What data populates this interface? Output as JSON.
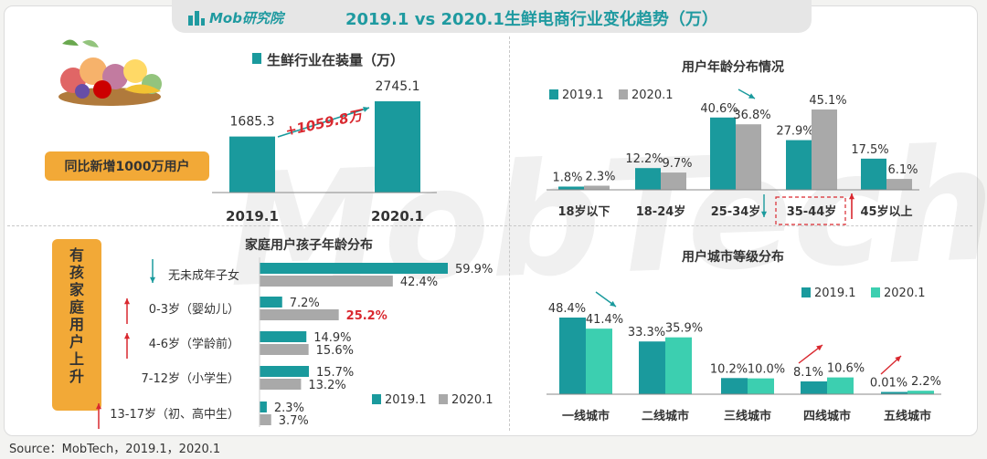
{
  "header": {
    "logo_text": "Mob研究院",
    "title": "2019.1 vs 2020.1生鲜电商行业变化趋势（万）"
  },
  "watermark": "MobTech",
  "source": "Source：MobTech，2019.1，2020.1",
  "colors": {
    "teal": "#1a9a9d",
    "gray": "#a9a9a9",
    "mint": "#3ccfb0",
    "red": "#d9282f",
    "orange": "#f2a937"
  },
  "badges": {
    "users_added": "同比新增1000万用户",
    "family_rising": "有孩家庭用户上升"
  },
  "chart_data": [
    {
      "id": "installed_base",
      "type": "bar",
      "title": "生鲜行业在装量（万）",
      "categories": [
        "2019.1",
        "2020.1"
      ],
      "values": [
        1685.3,
        2745.1
      ],
      "value_labels": [
        "1685.3",
        "2745.1"
      ],
      "annotation": "+1059.8万"
    },
    {
      "id": "age_distribution",
      "type": "bar",
      "title": "用户年龄分布情况",
      "categories": [
        "18岁以下",
        "18-24岁",
        "25-34岁",
        "35-44岁",
        "45岁以上"
      ],
      "series": [
        {
          "name": "2019.1",
          "values": [
            1.8,
            12.2,
            40.6,
            27.9,
            17.5
          ],
          "labels": [
            "1.8%",
            "12.2%",
            "40.6%",
            "27.9%",
            "17.5%"
          ]
        },
        {
          "name": "2020.1",
          "values": [
            2.3,
            9.7,
            36.8,
            45.1,
            6.1
          ],
          "labels": [
            "2.3%",
            "9.7%",
            "36.8%",
            "45.1%",
            "6.1%"
          ]
        }
      ]
    },
    {
      "id": "children_age",
      "type": "bar",
      "orientation": "horizontal",
      "title": "家庭用户孩子年龄分布",
      "categories": [
        "无未成年子女",
        "0-3岁（婴幼儿）",
        "4-6岁（学龄前）",
        "7-12岁（小学生）",
        "13-17岁（初、高中生）"
      ],
      "series": [
        {
          "name": "2019.1",
          "values": [
            59.9,
            7.2,
            14.9,
            15.7,
            2.3
          ],
          "labels": [
            "59.9%",
            "7.2%",
            "14.9%",
            "15.7%",
            "2.3%"
          ]
        },
        {
          "name": "2020.1",
          "values": [
            42.4,
            25.2,
            15.6,
            13.2,
            3.7
          ],
          "labels": [
            "42.4%",
            "25.2%",
            "15.6%",
            "13.2%",
            "3.7%"
          ]
        }
      ],
      "highlight": "25.2%"
    },
    {
      "id": "city_tier",
      "type": "bar",
      "title": "用户城市等级分布",
      "categories": [
        "一线城市",
        "二线城市",
        "三线城市",
        "四线城市",
        "五线城市"
      ],
      "series": [
        {
          "name": "2019.1",
          "values": [
            48.4,
            33.3,
            10.2,
            8.1,
            0.01
          ],
          "labels": [
            "48.4%",
            "33.3%",
            "10.2%",
            "8.1%",
            "0.01%"
          ]
        },
        {
          "name": "2020.1",
          "values": [
            41.4,
            35.9,
            10.0,
            10.6,
            2.2
          ],
          "labels": [
            "41.4%",
            "35.9%",
            "10.0%",
            "10.6%",
            "2.2%"
          ]
        }
      ]
    }
  ]
}
